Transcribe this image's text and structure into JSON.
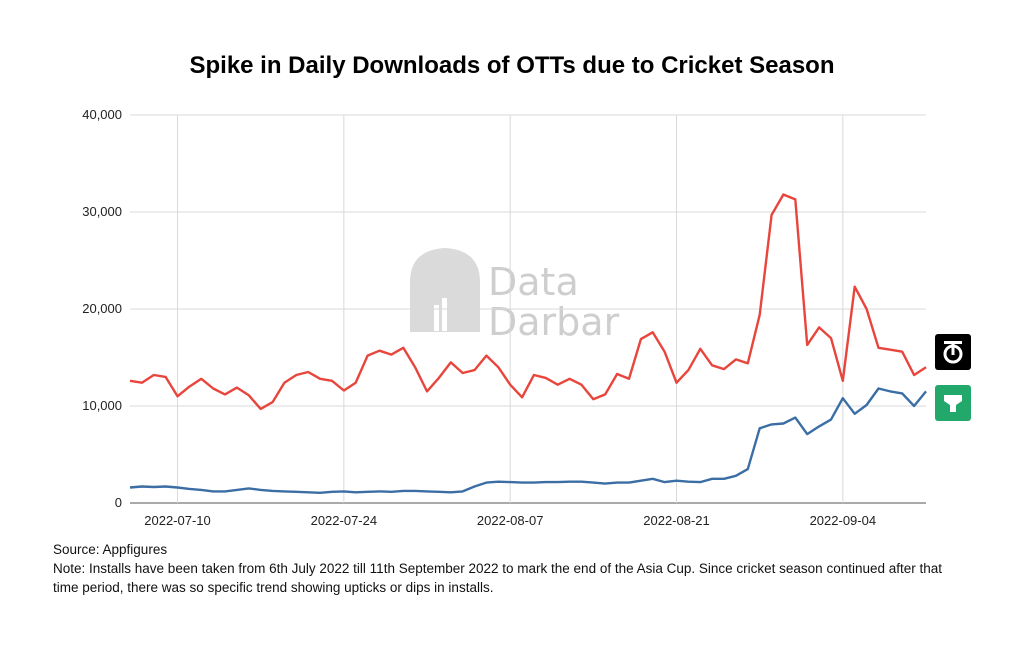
{
  "title": "Spike in Daily Downloads of OTTs due to Cricket Season",
  "watermark": {
    "line1": "Data",
    "line2": "Darbar"
  },
  "source": "Source: Appfigures",
  "note": "Note: Installs have been taken from 6th July 2022 till 11th September 2022 to mark the end of the Asia Cup. Since cricket season continued after that time period, there was so specific trend showing upticks or dips in installs.",
  "legend_icons": [
    {
      "name": "sonyliv-icon",
      "series": "top",
      "color": "#000000"
    },
    {
      "name": "hotstar-icon",
      "series": "bottom",
      "color": "#22a86a"
    }
  ],
  "chart_data": {
    "type": "line",
    "title": "Spike in Daily Downloads of OTTs due to Cricket Season",
    "xlabel": "",
    "ylabel": "",
    "x_start": "2022-07-06",
    "x_end": "2022-09-11",
    "ylim": [
      0,
      40000
    ],
    "yticks": [
      "0",
      "10,000",
      "20,000",
      "30,000",
      "40,000"
    ],
    "xticks": [
      "2022-07-10",
      "2022-07-24",
      "2022-08-07",
      "2022-08-21",
      "2022-09-04"
    ],
    "grid": true,
    "series": [
      {
        "color": "#e8453c",
        "values": [
          12600,
          12400,
          13200,
          13000,
          11000,
          12000,
          12800,
          11800,
          11200,
          11900,
          11100,
          9700,
          10400,
          12400,
          13200,
          13500,
          12800,
          12600,
          11600,
          12400,
          15200,
          15700,
          15300,
          16000,
          14000,
          11500,
          12900,
          14500,
          13400,
          13700,
          15200,
          14000,
          12200,
          10900,
          13200,
          12900,
          12200,
          12800,
          12200,
          10700,
          11200,
          13300,
          12800,
          16900,
          17600,
          15600,
          12400,
          13700,
          15900,
          14200,
          13800,
          14800,
          14400,
          19400,
          29700,
          31800,
          31300,
          16300,
          18100,
          17000,
          12600,
          22300,
          20000,
          16000,
          15800,
          15600,
          13200,
          14000
        ]
      },
      {
        "color": "#3a6ea5",
        "values": [
          1600,
          1700,
          1650,
          1700,
          1600,
          1450,
          1350,
          1200,
          1200,
          1350,
          1500,
          1350,
          1250,
          1200,
          1150,
          1100,
          1050,
          1150,
          1200,
          1100,
          1150,
          1200,
          1150,
          1250,
          1250,
          1200,
          1150,
          1100,
          1200,
          1700,
          2100,
          2200,
          2150,
          2100,
          2100,
          2150,
          2150,
          2200,
          2200,
          2100,
          2000,
          2100,
          2100,
          2300,
          2500,
          2150,
          2300,
          2200,
          2150,
          2500,
          2500,
          2800,
          3500,
          7700,
          8100,
          8200,
          8800,
          7100,
          7900,
          8600,
          10800,
          9200,
          10100,
          11800,
          11500,
          11300,
          10000,
          11500
        ]
      }
    ]
  }
}
